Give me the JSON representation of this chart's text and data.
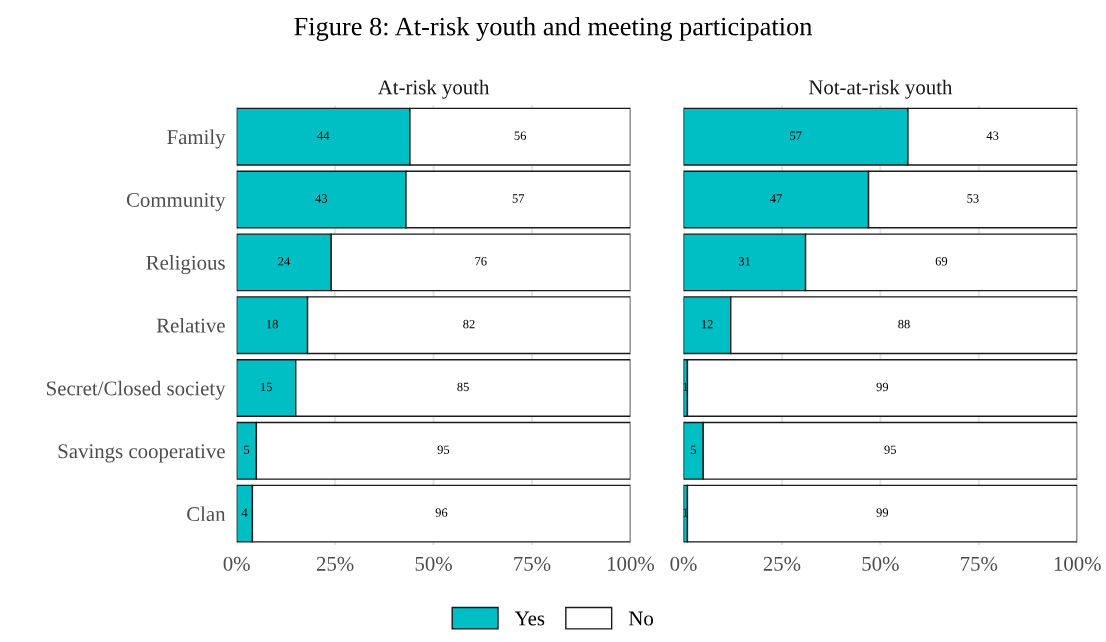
{
  "chart_data": [
    {
      "type": "bar",
      "title": "At-risk youth",
      "orientation": "horizontal",
      "stacked": true,
      "annotations": [
        "Figure 8: At-risk youth and meeting participation"
      ],
      "categories": [
        "Family",
        "Community",
        "Religious",
        "Relative",
        "Secret/Closed society",
        "Savings cooperative",
        "Clan"
      ],
      "series": [
        {
          "name": "Yes",
          "color": "#00bfc4",
          "values": [
            44,
            43,
            24,
            18,
            15,
            5,
            4
          ]
        },
        {
          "name": "No",
          "color": "#ffffff",
          "values": [
            56,
            57,
            76,
            82,
            85,
            95,
            96
          ]
        }
      ],
      "xlim": [
        0,
        100
      ],
      "xticks": [
        {
          "value": 0,
          "label": "0%"
        },
        {
          "value": 25,
          "label": "25%"
        },
        {
          "value": 50,
          "label": "50%"
        },
        {
          "value": 75,
          "label": "75%"
        },
        {
          "value": 100,
          "label": "100%"
        }
      ],
      "grid": "x",
      "data_labels": true,
      "legend": "bottom"
    },
    {
      "type": "bar",
      "title": "Not-at-risk youth",
      "orientation": "horizontal",
      "stacked": true,
      "categories": [
        "Family",
        "Community",
        "Religious",
        "Relative",
        "Secret/Closed society",
        "Savings cooperative",
        "Clan"
      ],
      "series": [
        {
          "name": "Yes",
          "color": "#00bfc4",
          "values": [
            57,
            47,
            31,
            12,
            1,
            5,
            1
          ]
        },
        {
          "name": "No",
          "color": "#ffffff",
          "values": [
            43,
            53,
            69,
            88,
            99,
            95,
            99
          ]
        }
      ],
      "xlim": [
        0,
        100
      ],
      "xticks": [
        {
          "value": 0,
          "label": "0%"
        },
        {
          "value": 25,
          "label": "25%"
        },
        {
          "value": 50,
          "label": "50%"
        },
        {
          "value": 75,
          "label": "75%"
        },
        {
          "value": 100,
          "label": "100%"
        }
      ],
      "grid": "x",
      "data_labels": true,
      "legend": "bottom",
      "tick_labels": "x"
    }
  ]
}
